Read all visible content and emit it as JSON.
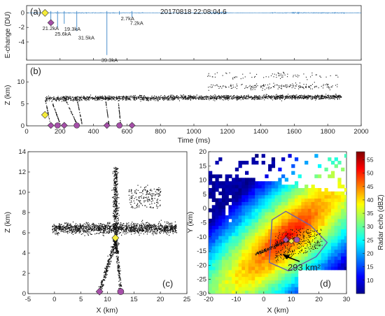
{
  "panel_a": {
    "label": "(a)",
    "timestamp": "20170818 22:08:04.6",
    "ylabel": "E-change (DU)",
    "yticks": [
      "0",
      "-2",
      "-4"
    ],
    "annotations": [
      "21.2kA",
      "25.6kA",
      "19.3kA",
      "31.5kA",
      "39.3kA",
      "2.7kA",
      "7.2kA"
    ]
  },
  "panel_b": {
    "label": "(b)",
    "ylabel": "Z (km)",
    "yticks": [
      "0",
      "5",
      "10"
    ],
    "xlabel": "Time (ms)",
    "xticks": [
      "0",
      "200",
      "400",
      "600",
      "800",
      "1000",
      "1200",
      "1400",
      "1600",
      "1800",
      "2000"
    ]
  },
  "panel_c": {
    "label": "(c)",
    "xlabel": "X (km)",
    "ylabel": "Z (km)",
    "xticks": [
      "-5",
      "0",
      "5",
      "10",
      "15",
      "20",
      "25"
    ],
    "yticks": [
      "0",
      "2",
      "4",
      "6",
      "8",
      "10",
      "12",
      "14"
    ]
  },
  "panel_d": {
    "label": "(d)",
    "xlabel": "X (km)",
    "ylabel": "Y (km)",
    "xticks": [
      "-20",
      "-10",
      "0",
      "10",
      "20",
      "30"
    ],
    "yticks": [
      "20",
      "15",
      "10",
      "5",
      "0",
      "-5",
      "-10",
      "-15",
      "-20",
      "-25",
      "-30"
    ],
    "area_annotation": "293 km²",
    "colorbar_label": "Radar echo (dBZ)",
    "colorbar_ticks": [
      "55",
      "50",
      "45",
      "40",
      "35",
      "30",
      "25",
      "20",
      "15",
      "10"
    ]
  },
  "colors": {
    "waveform": "#3a86c8",
    "source_points": "#111111",
    "return_stroke_marker": "#a54ea8",
    "initiation_marker": "#f5ec3a",
    "polygon": "#6a5fae"
  },
  "chart_data": [
    {
      "type": "line",
      "panel": "a",
      "xlim": [
        0,
        2000
      ],
      "ylim": [
        -6.5,
        1
      ],
      "strokes": [
        {
          "t": 145,
          "peak": -1.1,
          "label": "21.2kA"
        },
        {
          "t": 185,
          "peak": -2.0,
          "label": "25.6kA"
        },
        {
          "t": 225,
          "peak": -1.5,
          "label": "19.3kA"
        },
        {
          "t": 300,
          "peak": -2.5,
          "label": "31.5kA"
        },
        {
          "t": 480,
          "peak": -5.8,
          "label": "39.3kA"
        },
        {
          "t": 555,
          "peak": -0.25,
          "label": "2.7kA"
        },
        {
          "t": 630,
          "peak": -0.6,
          "label": "7.2kA"
        }
      ],
      "initiation": {
        "t": 110,
        "e": 0
      }
    },
    {
      "type": "scatter",
      "panel": "b",
      "xlim": [
        0,
        2000
      ],
      "ylim": [
        0,
        14
      ],
      "initiation": {
        "t": 110,
        "z": 2.5
      },
      "return_strokes_ms": [
        145,
        185,
        225,
        300,
        480,
        555,
        630
      ]
    },
    {
      "type": "scatter",
      "panel": "c",
      "xlim": [
        -5,
        25
      ],
      "ylim": [
        0,
        14
      ],
      "initiation": {
        "x": 11.5,
        "z": 5.5
      },
      "ground_strikes_x": [
        8.5,
        12.5
      ]
    },
    {
      "type": "heatmap",
      "panel": "d",
      "xlim": [
        -20,
        30
      ],
      "ylim": [
        -30,
        20
      ],
      "clim": [
        5,
        58
      ],
      "area_km2": 293
    }
  ]
}
